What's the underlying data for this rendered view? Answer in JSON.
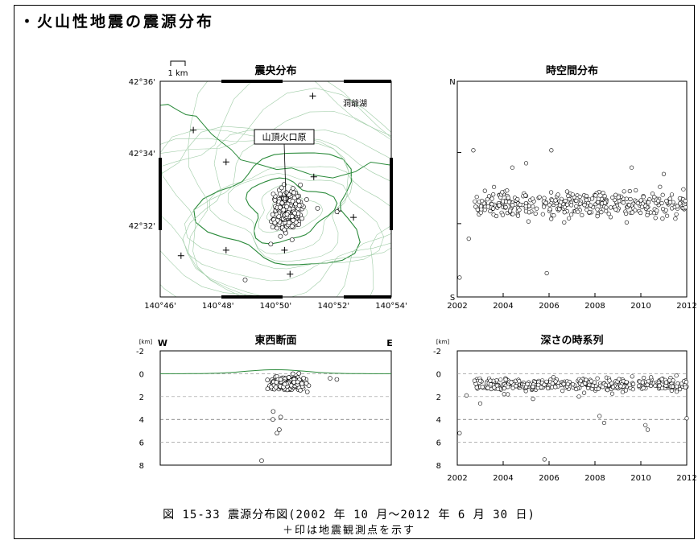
{
  "heading": "・火山性地震の震源分布",
  "caption": {
    "line1": "図 15-33 震源分布図(2002 年 10 月～2012 年 6 月 30 日)",
    "line2": "＋印は地震観測点を示す"
  },
  "chart_data": [
    {
      "id": "epicenter",
      "type": "scatter",
      "title": "震央分布",
      "scale_label": "1 km",
      "xlim": [
        140.7667,
        140.9
      ],
      "ylim": [
        42.5,
        42.6
      ],
      "x_ticks": [
        {
          "v": 140.7667,
          "label": "140°46'"
        },
        {
          "v": 140.8,
          "label": "140°48'"
        },
        {
          "v": 140.8333,
          "label": "140°50'"
        },
        {
          "v": 140.8667,
          "label": "140°52'"
        },
        {
          "v": 140.9,
          "label": "140°54'"
        }
      ],
      "y_ticks": [
        {
          "v": 42.6,
          "label": "42°36'"
        },
        {
          "v": 42.5667,
          "label": "42°34'"
        },
        {
          "v": 42.5333,
          "label": "42°32'"
        }
      ],
      "annotations": {
        "lake": "洞爺湖",
        "crater": "山頂火口原"
      },
      "crater_point": [
        140.8393,
        42.5442
      ],
      "stations": [
        [
          140.8547,
          42.5932
        ],
        [
          140.7858,
          42.5774
        ],
        [
          140.8047,
          42.5626
        ],
        [
          140.8553,
          42.5557
        ],
        [
          140.8047,
          42.5217
        ],
        [
          140.8384,
          42.5217
        ],
        [
          140.8694,
          42.5399
        ],
        [
          140.7787,
          42.5191
        ],
        [
          140.8782,
          42.5369
        ],
        [
          140.8416,
          42.5106
        ]
      ],
      "hypocenter_cluster": {
        "center": [
          140.8398,
          42.5403
        ],
        "count": 300
      },
      "outliers": [
        [
          140.8687,
          42.5395
        ],
        [
          140.8157,
          42.5079
        ],
        [
          140.8305,
          42.5245
        ],
        [
          140.8575,
          42.5411
        ]
      ],
      "coastline": [
        [
          140.7667,
          42.5889
        ],
        [
          140.7712,
          42.5893
        ],
        [
          140.7765,
          42.5867
        ],
        [
          140.7815,
          42.5845
        ],
        [
          140.7875,
          42.5838
        ],
        [
          140.7917,
          42.5799
        ],
        [
          140.7964,
          42.5755
        ],
        [
          140.8028,
          42.5713
        ],
        [
          140.8076,
          42.5684
        ],
        [
          140.8131,
          42.5636
        ],
        [
          140.8232,
          42.5616
        ],
        [
          140.8339,
          42.5591
        ],
        [
          140.8425,
          42.5598
        ],
        [
          140.8542,
          42.5566
        ],
        [
          140.8663,
          42.5552
        ],
        [
          140.8794,
          42.5581
        ],
        [
          140.8882,
          42.5625
        ],
        [
          140.9,
          42.5611
        ]
      ]
    },
    {
      "id": "spacetime",
      "type": "scatter",
      "title": "時空間分布",
      "xlim": [
        2002,
        2012
      ],
      "x_ticks": [
        2002,
        2004,
        2006,
        2008,
        2010,
        2012
      ],
      "y_top_label": "N",
      "y_bottom_label": "S",
      "band": {
        "level": 0.43,
        "count": 380,
        "start": 2002.75,
        "end": 2012.5
      },
      "outliers": [
        [
          2002.7,
          0.68
        ],
        [
          2004.4,
          0.6
        ],
        [
          2003.6,
          0.51
        ],
        [
          2009.6,
          0.6
        ],
        [
          2005.0,
          0.62
        ],
        [
          2006.1,
          0.68
        ],
        [
          2011.0,
          0.57
        ],
        [
          2002.1,
          0.09
        ],
        [
          2005.9,
          0.11
        ],
        [
          2002.5,
          0.27
        ]
      ]
    },
    {
      "id": "ew_section",
      "type": "scatter",
      "title": "東西断面",
      "unit": "[km]",
      "left_label": "W",
      "right_label": "E",
      "ylim": [
        -2,
        8
      ],
      "y_ticks": [
        -2,
        0,
        2,
        4,
        6,
        8
      ],
      "xlim": [
        140.7667,
        140.9
      ],
      "cluster": {
        "center": 140.8398,
        "depth": 0.9,
        "count": 170
      },
      "outliers": [
        [
          140.8317,
          4.0
        ],
        [
          140.8354,
          4.9
        ],
        [
          140.8341,
          5.2
        ],
        [
          140.8252,
          7.6
        ],
        [
          140.8647,
          0.4
        ],
        [
          140.8686,
          0.5
        ],
        [
          140.8319,
          3.3
        ],
        [
          140.8362,
          3.8
        ]
      ]
    },
    {
      "id": "depth_series",
      "type": "scatter",
      "title": "深さの時系列",
      "unit": "[km]",
      "xlim": [
        2002,
        2012
      ],
      "ylim": [
        -2,
        8
      ],
      "x_ticks": [
        2002,
        2004,
        2006,
        2008,
        2010,
        2012
      ],
      "y_ticks": [
        -2,
        0,
        2,
        4,
        6,
        8
      ],
      "band": {
        "depth": 0.95,
        "count": 380,
        "start": 2002.75,
        "end": 2012.5
      },
      "outliers": [
        [
          2002.1,
          5.2
        ],
        [
          2002.4,
          1.9
        ],
        [
          2004.2,
          1.8
        ],
        [
          2005.3,
          2.2
        ],
        [
          2005.8,
          7.5
        ],
        [
          2008.2,
          3.7
        ],
        [
          2008.4,
          4.3
        ],
        [
          2010.2,
          4.5
        ],
        [
          2010.3,
          4.9
        ],
        [
          2012.0,
          3.9
        ],
        [
          2003.0,
          2.6
        ],
        [
          2007.3,
          2.0
        ]
      ]
    }
  ]
}
